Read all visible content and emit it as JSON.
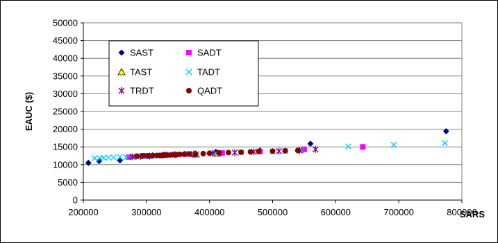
{
  "chart_data": {
    "type": "scatter",
    "title": "",
    "xlabel": "SARS",
    "ylabel": "EAUC ($)",
    "xlim": [
      200000,
      800000
    ],
    "ylim": [
      0,
      50000
    ],
    "x_ticks": [
      "200000",
      "300000",
      "400000",
      "500000",
      "600000",
      "700000",
      "800000"
    ],
    "y_ticks": [
      "0",
      "5000",
      "10000",
      "15000",
      "20000",
      "25000",
      "30000",
      "35000",
      "40000",
      "45000",
      "50000"
    ],
    "grid": "horizontal",
    "legend_position": "top-left",
    "series": [
      {
        "name": "SAST",
        "marker": "diamond",
        "color": "#000080",
        "points": [
          [
            208000,
            10500
          ],
          [
            225000,
            11000
          ],
          [
            258000,
            11200
          ],
          [
            275000,
            12200
          ],
          [
            292000,
            12400
          ],
          [
            310000,
            12600
          ],
          [
            330000,
            12800
          ],
          [
            360000,
            13000
          ],
          [
            410000,
            13600
          ],
          [
            480000,
            14000
          ],
          [
            560000,
            15900
          ],
          [
            775000,
            19400
          ]
        ]
      },
      {
        "name": "SADT",
        "marker": "square",
        "color": "#ff00ff",
        "points": [
          [
            272000,
            12100
          ],
          [
            300000,
            12500
          ],
          [
            330000,
            12800
          ],
          [
            365000,
            13000
          ],
          [
            420000,
            13300
          ],
          [
            480000,
            13700
          ],
          [
            550000,
            14300
          ],
          [
            643000,
            15000
          ]
        ]
      },
      {
        "name": "TAST",
        "marker": "triangle",
        "color": "#ffff00",
        "points": [
          [
            378000,
            12900
          ],
          [
            412000,
            13200
          ]
        ]
      },
      {
        "name": "TADT",
        "marker": "x",
        "color": "#00ccff",
        "points": [
          [
            218000,
            11800
          ],
          [
            226000,
            11800
          ],
          [
            232000,
            11900
          ],
          [
            240000,
            12000
          ],
          [
            248000,
            12000
          ],
          [
            258000,
            12100
          ],
          [
            268000,
            12100
          ],
          [
            280000,
            12200
          ],
          [
            295000,
            12300
          ],
          [
            310000,
            12400
          ],
          [
            330000,
            12600
          ],
          [
            350000,
            12800
          ],
          [
            380000,
            13000
          ],
          [
            410000,
            13200
          ],
          [
            450000,
            13400
          ],
          [
            500000,
            13600
          ],
          [
            520000,
            13800
          ],
          [
            545000,
            14000
          ],
          [
            620000,
            15100
          ],
          [
            692000,
            15600
          ],
          [
            773000,
            16100
          ]
        ]
      },
      {
        "name": "TRDT",
        "marker": "star",
        "color": "#800080",
        "points": [
          [
            278000,
            12200
          ],
          [
            290000,
            12300
          ],
          [
            305000,
            12400
          ],
          [
            325000,
            12600
          ],
          [
            345000,
            12800
          ],
          [
            375000,
            13000
          ],
          [
            405000,
            13200
          ],
          [
            440000,
            13400
          ],
          [
            470000,
            13600
          ],
          [
            510000,
            13800
          ],
          [
            543000,
            14000
          ],
          [
            568000,
            14300
          ]
        ]
      },
      {
        "name": "QADT",
        "marker": "circle",
        "color": "#800000",
        "points": [
          [
            285000,
            12400
          ],
          [
            295000,
            12500
          ],
          [
            303000,
            12500
          ],
          [
            310000,
            12600
          ],
          [
            317000,
            12600
          ],
          [
            322000,
            12600
          ],
          [
            327000,
            12700
          ],
          [
            332000,
            12700
          ],
          [
            337000,
            12700
          ],
          [
            342000,
            12800
          ],
          [
            347000,
            12800
          ],
          [
            353000,
            12900
          ],
          [
            360000,
            12900
          ],
          [
            368000,
            13000
          ],
          [
            378000,
            13000
          ],
          [
            390000,
            13100
          ],
          [
            400000,
            13200
          ],
          [
            415000,
            13300
          ],
          [
            430000,
            13400
          ],
          [
            450000,
            13500
          ],
          [
            465000,
            13600
          ],
          [
            478000,
            13700
          ],
          [
            500000,
            13800
          ],
          [
            520000,
            13900
          ],
          [
            540000,
            14000
          ]
        ]
      }
    ]
  }
}
